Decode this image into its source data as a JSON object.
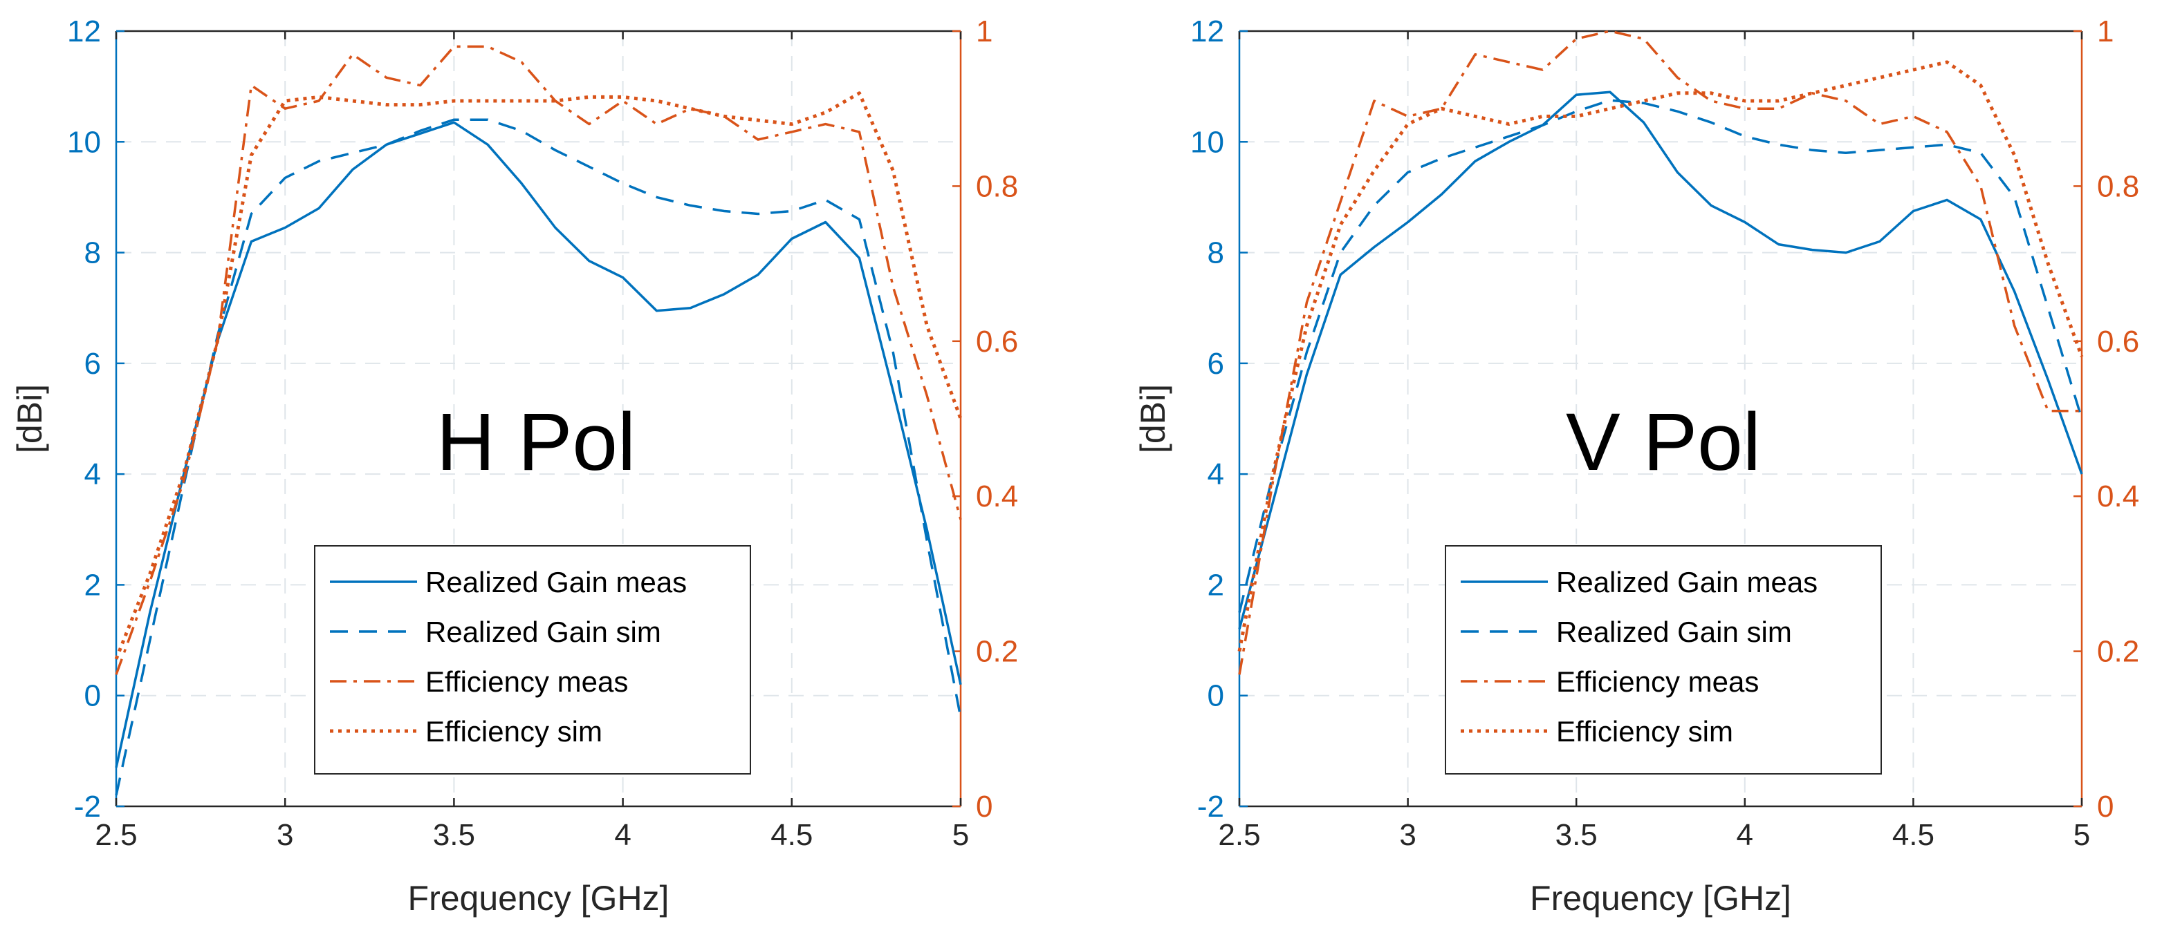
{
  "colors": {
    "gain": "#0072BD",
    "efficiency": "#D95319",
    "grid": "#dfe5ea",
    "axis": "#262626"
  },
  "legend": {
    "entries": [
      {
        "label": "Realized Gain meas",
        "style": "solid",
        "color": "#0072BD"
      },
      {
        "label": "Realized Gain sim",
        "style": "dashed",
        "color": "#0072BD"
      },
      {
        "label": "Efficiency meas",
        "style": "dashdot",
        "color": "#D95319"
      },
      {
        "label": "Efficiency sim",
        "style": "dotted",
        "color": "#D95319"
      }
    ]
  },
  "chart_data": [
    {
      "type": "line",
      "title": "H Pol",
      "xlabel": "Frequency [GHz]",
      "ylabel": "[dBi]",
      "xlim": [
        2.5,
        5
      ],
      "ylim": [
        -2,
        12
      ],
      "y2lim": [
        0,
        1
      ],
      "xticks": [
        "2.5",
        "3",
        "3.5",
        "4",
        "4.5",
        "5"
      ],
      "yticks": [
        "-2",
        "0",
        "2",
        "4",
        "6",
        "8",
        "10",
        "12"
      ],
      "y2ticks": [
        "0",
        "0.2",
        "0.4",
        "0.6",
        "0.8",
        "1"
      ],
      "x": [
        2.5,
        2.6,
        2.7,
        2.8,
        2.9,
        3.0,
        3.1,
        3.2,
        3.3,
        3.4,
        3.5,
        3.6,
        3.7,
        3.8,
        3.9,
        4.0,
        4.1,
        4.2,
        4.3,
        4.4,
        4.5,
        4.6,
        4.7,
        4.8,
        4.9,
        5.0
      ],
      "series": [
        {
          "name": "Realized Gain meas",
          "axis": "left",
          "values": [
            -1.3,
            1.5,
            4.0,
            6.4,
            8.2,
            8.45,
            8.8,
            9.5,
            9.95,
            10.15,
            10.35,
            9.95,
            9.25,
            8.45,
            7.85,
            7.55,
            6.95,
            7.0,
            7.25,
            7.6,
            8.25,
            8.55,
            7.9,
            5.5,
            3.0,
            0.2
          ]
        },
        {
          "name": "Realized Gain sim",
          "axis": "left",
          "values": [
            -1.8,
            1.0,
            3.8,
            6.5,
            8.7,
            9.35,
            9.65,
            9.8,
            9.95,
            10.2,
            10.4,
            10.4,
            10.2,
            9.85,
            9.55,
            9.25,
            9.0,
            8.85,
            8.75,
            8.7,
            8.75,
            8.95,
            8.6,
            6.2,
            2.8,
            -0.4
          ]
        },
        {
          "name": "Efficiency meas",
          "axis": "right",
          "values": [
            0.17,
            0.29,
            0.42,
            0.6,
            0.93,
            0.9,
            0.91,
            0.97,
            0.94,
            0.93,
            0.98,
            0.98,
            0.96,
            0.91,
            0.88,
            0.91,
            0.88,
            0.9,
            0.89,
            0.86,
            0.87,
            0.88,
            0.87,
            0.67,
            0.53,
            0.37
          ]
        },
        {
          "name": "Efficiency sim",
          "axis": "right",
          "values": [
            0.19,
            0.3,
            0.43,
            0.6,
            0.84,
            0.91,
            0.915,
            0.91,
            0.905,
            0.905,
            0.91,
            0.91,
            0.91,
            0.91,
            0.915,
            0.915,
            0.91,
            0.9,
            0.89,
            0.885,
            0.88,
            0.895,
            0.92,
            0.82,
            0.62,
            0.5
          ]
        }
      ]
    },
    {
      "type": "line",
      "title": "V Pol",
      "xlabel": "Frequency [GHz]",
      "ylabel": "[dBi]",
      "xlim": [
        2.5,
        5
      ],
      "ylim": [
        -2,
        12
      ],
      "y2lim": [
        0,
        1
      ],
      "xticks": [
        "2.5",
        "3",
        "3.5",
        "4",
        "4.5",
        "5"
      ],
      "yticks": [
        "-2",
        "0",
        "2",
        "4",
        "6",
        "8",
        "10",
        "12"
      ],
      "y2ticks": [
        "0",
        "0.2",
        "0.4",
        "0.6",
        "0.8",
        "1"
      ],
      "x": [
        2.5,
        2.6,
        2.7,
        2.8,
        2.9,
        3.0,
        3.1,
        3.2,
        3.3,
        3.4,
        3.5,
        3.6,
        3.7,
        3.8,
        3.9,
        4.0,
        4.1,
        4.2,
        4.3,
        4.4,
        4.5,
        4.6,
        4.7,
        4.8,
        4.9,
        5.0
      ],
      "series": [
        {
          "name": "Realized Gain meas",
          "axis": "left",
          "values": [
            1.2,
            3.5,
            5.8,
            7.6,
            8.1,
            8.55,
            9.05,
            9.65,
            10.0,
            10.3,
            10.85,
            10.9,
            10.35,
            9.45,
            8.85,
            8.55,
            8.15,
            8.05,
            8.0,
            8.2,
            8.75,
            8.95,
            8.6,
            7.3,
            5.7,
            4.0
          ]
        },
        {
          "name": "Realized Gain sim",
          "axis": "left",
          "values": [
            1.5,
            4.0,
            6.2,
            8.0,
            8.85,
            9.45,
            9.7,
            9.9,
            10.1,
            10.3,
            10.55,
            10.75,
            10.7,
            10.55,
            10.35,
            10.1,
            9.95,
            9.85,
            9.8,
            9.85,
            9.9,
            9.95,
            9.8,
            9.0,
            7.0,
            5.0
          ]
        },
        {
          "name": "Efficiency meas",
          "axis": "right",
          "values": [
            0.17,
            0.42,
            0.65,
            0.78,
            0.91,
            0.89,
            0.9,
            0.97,
            0.96,
            0.95,
            0.99,
            1.0,
            0.99,
            0.94,
            0.91,
            0.9,
            0.9,
            0.92,
            0.91,
            0.88,
            0.89,
            0.87,
            0.8,
            0.62,
            0.51,
            0.51
          ]
        },
        {
          "name": "Efficiency sim",
          "axis": "right",
          "values": [
            0.2,
            0.43,
            0.62,
            0.75,
            0.82,
            0.88,
            0.9,
            0.89,
            0.88,
            0.89,
            0.89,
            0.9,
            0.91,
            0.92,
            0.92,
            0.91,
            0.91,
            0.92,
            0.93,
            0.94,
            0.95,
            0.96,
            0.93,
            0.84,
            0.7,
            0.58
          ]
        }
      ]
    }
  ]
}
